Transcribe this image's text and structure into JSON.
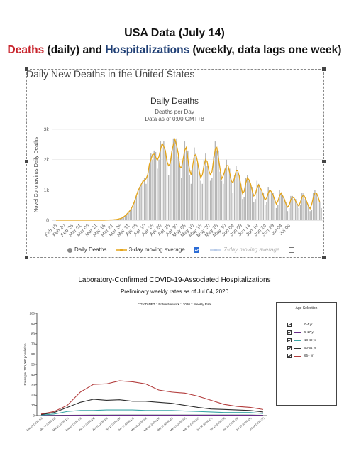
{
  "header": {
    "title": "USA Data (July 14)",
    "sub_deaths": "Deaths",
    "sub_mid": " (daily) and ",
    "sub_hosp": "Hospitalizations",
    "sub_end": " (weekly, data lags one week)"
  },
  "colors": {
    "deaths_red": "#c8232b",
    "hosp_blue": "#1f3f75",
    "bar": "#b5b5b5",
    "avg_line": "#e4a419"
  },
  "panel1": {
    "title": "Daily New Deaths in the United States"
  },
  "chart_data": [
    {
      "type": "bar",
      "title": "Daily Deaths",
      "subtitle": "Deaths per Day",
      "subtitle2": "Data as of 0:00 GMT+8",
      "ylabel": "Novel Coronavirus Daily Deaths",
      "xlabel": "",
      "ylim": [
        0,
        3000
      ],
      "y_ticks": [
        0,
        1000,
        2000,
        3000
      ],
      "y_tick_labels": [
        "0",
        "1k",
        "2k",
        "3k"
      ],
      "grid": true,
      "legend_position": "bottom",
      "x_start": "2020-02-15",
      "x_tick_labels": [
        "Feb 15",
        "Feb 20",
        "Feb 25",
        "Mar 01",
        "Mar 06",
        "Mar 11",
        "Mar 16",
        "Mar 21",
        "Mar 26",
        "Mar 31",
        "Apr 05",
        "Apr 10",
        "Apr 15",
        "Apr 20",
        "Apr 25",
        "Apr 30",
        "May 05",
        "May 10",
        "May 15",
        "May 20",
        "May 25",
        "May 30",
        "Jun 04",
        "Jun 09",
        "Jun 14",
        "Jun 19",
        "Jun 24",
        "Jun 29",
        "Jul 04",
        "Jul 09"
      ],
      "series": [
        {
          "name": "Daily Deaths",
          "values": [
            0,
            0,
            0,
            0,
            0,
            0,
            0,
            0,
            0,
            0,
            0,
            0,
            0,
            0,
            0,
            0,
            0,
            0,
            0,
            0,
            0,
            0,
            0,
            0,
            0,
            0,
            0,
            0,
            0,
            0,
            0,
            2,
            5,
            10,
            8,
            12,
            15,
            20,
            30,
            40,
            55,
            70,
            100,
            150,
            200,
            250,
            320,
            380,
            500,
            650,
            800,
            1000,
            1100,
            1150,
            1300,
            1400,
            1200,
            1500,
            1800,
            2200,
            2000,
            2300,
            2250,
            1700,
            2000,
            2600,
            2400,
            2600,
            2300,
            2000,
            1500,
            1900,
            2200,
            2700,
            2600,
            2700,
            2100,
            1800,
            1400,
            2000,
            2600,
            2300,
            2300,
            1500,
            1200,
            1800,
            2400,
            2200,
            1900,
            1700,
            1300,
            1200,
            2000,
            2200,
            1800,
            1800,
            1300,
            1400,
            2100,
            2600,
            2300,
            2300,
            1600,
            1300,
            1200,
            1700,
            2000,
            1700,
            1700,
            1300,
            900,
            1500,
            1800,
            1600,
            1500,
            1200,
            700,
            750,
            1400,
            1500,
            1300,
            1200,
            1100,
            600,
            700,
            1300,
            1200,
            1000,
            1000,
            900,
            500,
            600,
            1100,
            1000,
            900,
            900,
            700,
            400,
            500,
            1000,
            900,
            800,
            700,
            600,
            300,
            400,
            800,
            800,
            700,
            700,
            500,
            400,
            500,
            900,
            900,
            700,
            600,
            500,
            300,
            350,
            900,
            1000,
            900,
            800,
            600,
            400
          ]
        },
        {
          "name": "3-day moving average",
          "values": [
            0,
            0,
            0,
            0,
            0,
            0,
            0,
            0,
            0,
            0,
            0,
            0,
            0,
            0,
            0,
            0,
            0,
            0,
            0,
            0,
            0,
            0,
            0,
            0,
            0,
            0,
            0,
            0,
            0,
            0,
            1,
            2,
            6,
            8,
            10,
            12,
            16,
            22,
            30,
            42,
            55,
            75,
            107,
            150,
            200,
            257,
            317,
            400,
            510,
            650,
            817,
            967,
            1083,
            1183,
            1283,
            1300,
            1367,
            1500,
            1833,
            2000,
            2167,
            2183,
            2083,
            1983,
            2100,
            2333,
            2533,
            2433,
            2300,
            1933,
            1800,
            1867,
            2267,
            2500,
            2667,
            2467,
            2200,
            1767,
            1733,
            2000,
            2300,
            2400,
            2033,
            1667,
            1500,
            1800,
            2133,
            2167,
            1933,
            1633,
            1400,
            1500,
            1800,
            2000,
            1933,
            1633,
            1500,
            1600,
            2000,
            2333,
            2400,
            2067,
            1700,
            1367,
            1467,
            1633,
            1800,
            1800,
            1567,
            1300,
            1233,
            1400,
            1633,
            1633,
            1433,
            1133,
            883,
            950,
            1217,
            1400,
            1333,
            1200,
            967,
            800,
            867,
            1067,
            1167,
            1067,
            967,
            800,
            667,
            733,
            900,
            1000,
            933,
            833,
            667,
            533,
            633,
            800,
            900,
            800,
            700,
            533,
            433,
            500,
            667,
            767,
            733,
            633,
            533,
            467,
            600,
            767,
            833,
            733,
            600,
            467,
            383,
            517,
            750,
            900,
            900,
            767,
            600
          ]
        },
        {
          "name": "7-day moving average",
          "values": []
        }
      ],
      "legend": [
        {
          "label": "Daily Deaths",
          "enabled": true
        },
        {
          "label": "3-day moving average",
          "enabled": true
        },
        {
          "label": "7-day moving average",
          "enabled": false
        }
      ]
    },
    {
      "type": "line",
      "title": "Laboratory-Confirmed COVID-19-Associated Hospitalizations",
      "subtitle": "Preliminary weekly rates as of Jul 04, 2020",
      "network_label": "COVID-NET :: Entire Network :: 2020 :: Weekly Rate",
      "ylabel": "Rates per 100,000 population",
      "ylim": [
        0,
        100
      ],
      "y_ticks": [
        0,
        10,
        20,
        30,
        40,
        50,
        60,
        70,
        80,
        90,
        100
      ],
      "x": [
        "Mar 07 (2020-10)",
        "Mar 14 (2020-11)",
        "Mar 21 (2020-12)",
        "Mar 28 (2020-13)",
        "Apr 04 (2020-14)",
        "Apr 11 (2020-15)",
        "Apr 18 (2020-16)",
        "Apr 25 (2020-17)",
        "May 02 (2020-18)",
        "May 09 (2020-19)",
        "May 16 (2020-20)",
        "May 23 (2020-21)",
        "May 30 (2020-22)",
        "Jun 06 (2020-23)",
        "Jun 13 (2020-24)",
        "Jun 20 (2020-25)",
        "Jun 27 (2020-26)",
        "Jul 04 (2020-27)"
      ],
      "legend_title": "Age Selection",
      "legend_position": "right",
      "series": [
        {
          "name": "0-4 yr",
          "color": "#2f8f44",
          "values": [
            0.1,
            0.2,
            0.3,
            0.4,
            0.5,
            0.5,
            0.5,
            0.5,
            0.5,
            0.5,
            0.5,
            0.5,
            0.5,
            0.5,
            0.5,
            0.5,
            0.5,
            0.3
          ]
        },
        {
          "name": "5-17 yr",
          "color": "#6a2a8a",
          "values": [
            0,
            0.1,
            0.2,
            0.3,
            0.3,
            0.3,
            0.4,
            0.4,
            0.4,
            0.4,
            0.4,
            0.4,
            0.4,
            0.4,
            0.4,
            0.4,
            0.4,
            0.2
          ]
        },
        {
          "name": "18-49 yr",
          "color": "#3aa6a6",
          "values": [
            0.5,
            1.5,
            4,
            5,
            5,
            5.5,
            5.5,
            5.5,
            5,
            5,
            5,
            4.5,
            4,
            3.5,
            3,
            3,
            3,
            2
          ]
        },
        {
          "name": "50-64 yr",
          "color": "#2e2e2e",
          "values": [
            1,
            3,
            8,
            13,
            16,
            15,
            15.5,
            14,
            14,
            13,
            12,
            10,
            8,
            6.5,
            6,
            5.5,
            5,
            3.5
          ]
        },
        {
          "name": "65+ yr",
          "color": "#b23b3b",
          "values": [
            1.5,
            4,
            10,
            23,
            30.5,
            31,
            34,
            33,
            31,
            25,
            23,
            22,
            19,
            15,
            11,
            9,
            8,
            6
          ]
        }
      ]
    }
  ]
}
